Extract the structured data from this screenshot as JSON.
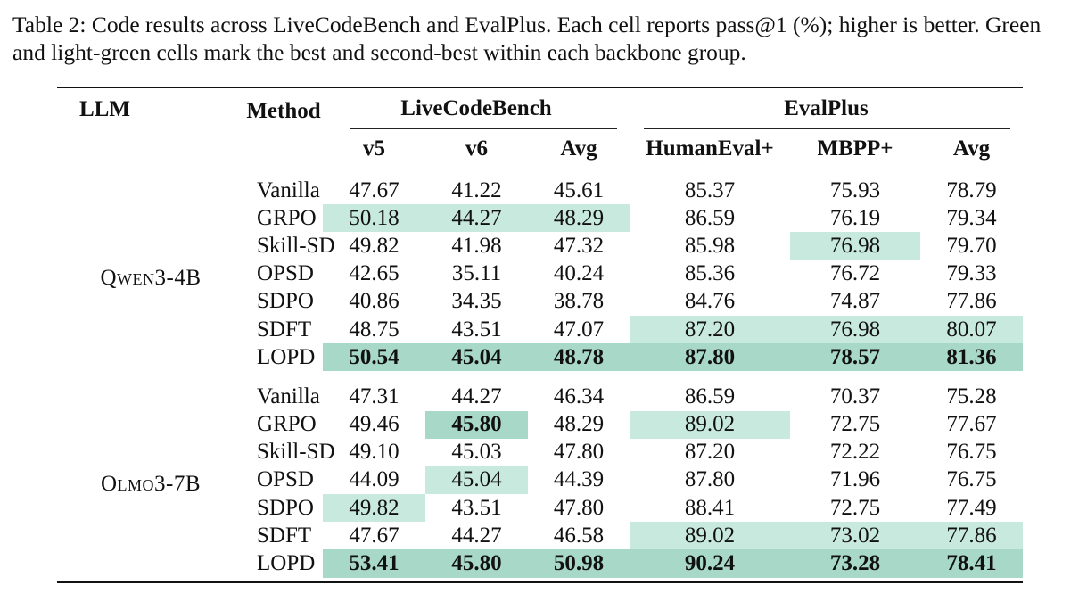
{
  "caption": "Table 2: Code results across LiveCodeBench and EvalPlus. Each cell reports pass@1 (%); higher is better. Green and light-green cells mark the best and second-best within each backbone group.",
  "colors": {
    "best": "#a8d8c8",
    "second": "#c8e9dd"
  },
  "header": {
    "llm": "LLM",
    "method": "Method",
    "group_lcb": "LiveCodeBench",
    "group_evalplus": "EvalPlus",
    "cols": [
      "v5",
      "v6",
      "Avg",
      "HumanEval+",
      "MBPP+",
      "Avg"
    ]
  },
  "groups": [
    {
      "llm": "Qwen3-4B",
      "rows": [
        {
          "method": "Vanilla",
          "values": [
            "47.67",
            "41.22",
            "45.61",
            "85.37",
            "75.93",
            "78.79"
          ],
          "marks": [
            "",
            "",
            "",
            "",
            "",
            ""
          ]
        },
        {
          "method": "GRPO",
          "values": [
            "50.18",
            "44.27",
            "48.29",
            "86.59",
            "76.19",
            "79.34"
          ],
          "marks": [
            "second",
            "second",
            "second",
            "",
            "",
            ""
          ]
        },
        {
          "method": "Skill-SD",
          "values": [
            "49.82",
            "41.98",
            "47.32",
            "85.98",
            "76.98",
            "79.70"
          ],
          "marks": [
            "",
            "",
            "",
            "",
            "second",
            ""
          ]
        },
        {
          "method": "OPSD",
          "values": [
            "42.65",
            "35.11",
            "40.24",
            "85.36",
            "76.72",
            "79.33"
          ],
          "marks": [
            "",
            "",
            "",
            "",
            "",
            ""
          ]
        },
        {
          "method": "SDPO",
          "values": [
            "40.86",
            "34.35",
            "38.78",
            "84.76",
            "74.87",
            "77.86"
          ],
          "marks": [
            "",
            "",
            "",
            "",
            "",
            ""
          ]
        },
        {
          "method": "SDFT",
          "values": [
            "48.75",
            "43.51",
            "47.07",
            "87.20",
            "76.98",
            "80.07"
          ],
          "marks": [
            "",
            "",
            "",
            "second",
            "second",
            "second"
          ]
        },
        {
          "method": "LOPD",
          "values": [
            "50.54",
            "45.04",
            "48.78",
            "87.80",
            "78.57",
            "81.36"
          ],
          "marks": [
            "best",
            "best",
            "best",
            "best",
            "best",
            "best"
          ]
        }
      ]
    },
    {
      "llm": "Olmo3-7B",
      "rows": [
        {
          "method": "Vanilla",
          "values": [
            "47.31",
            "44.27",
            "46.34",
            "86.59",
            "70.37",
            "75.28"
          ],
          "marks": [
            "",
            "",
            "",
            "",
            "",
            ""
          ]
        },
        {
          "method": "GRPO",
          "values": [
            "49.46",
            "45.80",
            "48.29",
            "89.02",
            "72.75",
            "77.67"
          ],
          "marks": [
            "",
            "best",
            "",
            "second",
            "",
            ""
          ]
        },
        {
          "method": "Skill-SD",
          "values": [
            "49.10",
            "45.03",
            "47.80",
            "87.20",
            "72.22",
            "76.75"
          ],
          "marks": [
            "",
            "",
            "",
            "",
            "",
            ""
          ]
        },
        {
          "method": "OPSD",
          "values": [
            "44.09",
            "45.04",
            "44.39",
            "87.80",
            "71.96",
            "76.75"
          ],
          "marks": [
            "",
            "second",
            "",
            "",
            "",
            ""
          ]
        },
        {
          "method": "SDPO",
          "values": [
            "49.82",
            "43.51",
            "47.80",
            "88.41",
            "72.75",
            "77.49"
          ],
          "marks": [
            "second",
            "",
            "",
            "",
            "",
            ""
          ]
        },
        {
          "method": "SDFT",
          "values": [
            "47.67",
            "44.27",
            "46.58",
            "89.02",
            "73.02",
            "77.86"
          ],
          "marks": [
            "",
            "",
            "",
            "second",
            "second",
            "second"
          ]
        },
        {
          "method": "LOPD",
          "values": [
            "53.41",
            "45.80",
            "50.98",
            "90.24",
            "73.28",
            "78.41"
          ],
          "marks": [
            "best",
            "best",
            "best",
            "best",
            "best",
            "best"
          ]
        }
      ]
    }
  ]
}
